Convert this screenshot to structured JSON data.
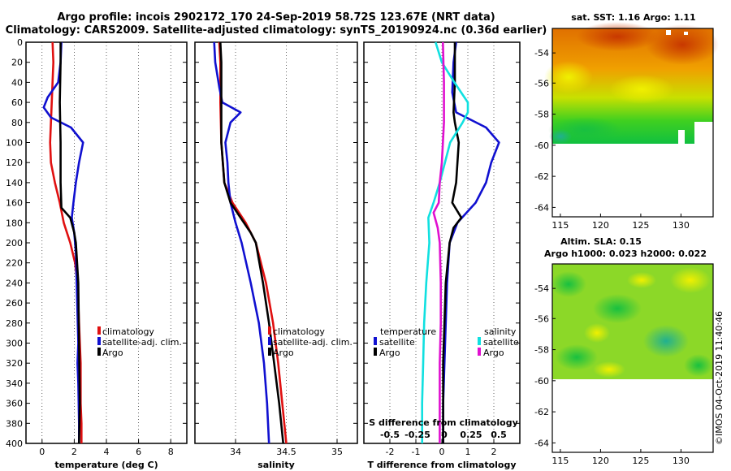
{
  "title": {
    "line1": "Argo profile: incois 2902172_170 24-Sep-2019 58.72S 123.67E (NRT data)",
    "line2": "Climatology: CARS2009. Satellite-adjusted climatology: synTS_20190924.nc (0.36d earlier)"
  },
  "colors": {
    "clim": "#e01010",
    "sat": "#1010d0",
    "argo": "#000000",
    "sat_s": "#10e0e0",
    "argo_s": "#e010d0"
  },
  "chart_data": [
    {
      "id": "temperature",
      "type": "line",
      "xlabel": "temperature (deg C)",
      "xlim": [
        -1,
        9
      ],
      "ylim": [
        0,
        400
      ],
      "xticks": [
        0,
        2,
        4,
        6,
        8
      ],
      "yticks": [
        0,
        20,
        40,
        60,
        80,
        100,
        120,
        140,
        160,
        180,
        200,
        220,
        240,
        260,
        280,
        300,
        320,
        340,
        360,
        380,
        400
      ],
      "legend": [
        "climatology",
        "satellite-adj. clim.",
        "Argo"
      ],
      "series": [
        {
          "name": "climatology",
          "color": "clim",
          "y": [
            0,
            20,
            60,
            80,
            100,
            120,
            140,
            160,
            180,
            200,
            220,
            240,
            260,
            280,
            300,
            320,
            340,
            360,
            380,
            400
          ],
          "x": [
            0.65,
            0.7,
            0.6,
            0.55,
            0.5,
            0.55,
            0.8,
            1.1,
            1.35,
            1.75,
            2.05,
            2.2,
            2.25,
            2.3,
            2.35,
            2.4,
            2.4,
            2.4,
            2.45,
            2.45
          ]
        },
        {
          "name": "satellite-adj. clim.",
          "color": "sat",
          "y": [
            0,
            20,
            40,
            55,
            65,
            75,
            85,
            100,
            120,
            140,
            160,
            175,
            190,
            210,
            240,
            270,
            300,
            320,
            340,
            380,
            400
          ],
          "x": [
            1.2,
            1.15,
            1.0,
            0.35,
            0.1,
            0.55,
            1.8,
            2.55,
            2.3,
            2.1,
            1.95,
            1.85,
            2.0,
            2.1,
            2.15,
            2.2,
            2.25,
            2.2,
            2.25,
            2.3,
            2.3
          ]
        },
        {
          "name": "Argo",
          "color": "argo",
          "y": [
            0,
            20,
            60,
            100,
            140,
            165,
            175,
            190,
            200,
            240,
            300,
            360,
            400
          ],
          "x": [
            1.15,
            1.15,
            1.1,
            1.15,
            1.15,
            1.2,
            1.75,
            2.0,
            2.1,
            2.25,
            2.3,
            2.35,
            2.3
          ]
        }
      ]
    },
    {
      "id": "salinity",
      "type": "line",
      "xlabel": "salinity",
      "xlim": [
        33.6,
        35.2
      ],
      "ylim": [
        0,
        400
      ],
      "xticks": [
        34,
        34.5,
        35
      ],
      "xticklabels": [
        "34",
        "34.5",
        "35"
      ],
      "legend": [
        "climatology",
        "satellite-adj. clim.",
        "Argo"
      ],
      "series": [
        {
          "name": "climatology",
          "color": "clim",
          "y": [
            0,
            20,
            60,
            100,
            140,
            160,
            180,
            200,
            240,
            280,
            320,
            360,
            400
          ],
          "x": [
            33.84,
            33.85,
            33.85,
            33.86,
            33.89,
            33.97,
            34.1,
            34.2,
            34.3,
            34.37,
            34.42,
            34.46,
            34.5
          ]
        },
        {
          "name": "satellite-adj. clim.",
          "color": "sat",
          "y": [
            0,
            20,
            45,
            60,
            70,
            80,
            100,
            120,
            140,
            160,
            180,
            200,
            240,
            280,
            320,
            360,
            400
          ],
          "x": [
            33.79,
            33.8,
            33.84,
            33.87,
            34.05,
            33.95,
            33.9,
            33.92,
            33.93,
            33.95,
            34.0,
            34.06,
            34.15,
            34.23,
            34.28,
            34.31,
            34.33
          ]
        },
        {
          "name": "Argo",
          "color": "argo",
          "y": [
            0,
            20,
            60,
            100,
            140,
            160,
            175,
            190,
            200,
            240,
            280,
            320,
            360,
            400
          ],
          "x": [
            33.85,
            33.86,
            33.86,
            33.86,
            33.89,
            33.95,
            34.05,
            34.15,
            34.2,
            34.27,
            34.33,
            34.38,
            34.43,
            34.47
          ]
        }
      ]
    },
    {
      "id": "difference",
      "type": "line",
      "xlabel": "T difference from climatology",
      "xlim": [
        -3,
        3
      ],
      "ylim": [
        0,
        400
      ],
      "xticks": [
        -2,
        -1,
        0,
        1,
        2
      ],
      "top_xlabel": "S difference from climatology",
      "top_ticks": [
        "-0.5",
        "-0.25",
        "0",
        "0.25",
        "0.5"
      ],
      "legend_left_title": "temperature",
      "legend_left": [
        "satellite",
        "Argo"
      ],
      "legend_right_title": "salinity",
      "legend_right": [
        "satellite",
        "Argo"
      ],
      "series": [
        {
          "name": "T satellite",
          "color": "sat",
          "y": [
            0,
            20,
            50,
            70,
            85,
            100,
            120,
            140,
            160,
            180,
            200,
            240,
            280,
            320,
            360,
            400
          ],
          "x": [
            0.55,
            0.45,
            0.4,
            0.55,
            1.7,
            2.2,
            1.9,
            1.7,
            1.3,
            0.6,
            0.3,
            0.2,
            0.15,
            0.1,
            0.05,
            0.05
          ]
        },
        {
          "name": "T Argo",
          "color": "argo",
          "y": [
            0,
            40,
            70,
            80,
            100,
            120,
            140,
            160,
            175,
            185,
            200,
            240,
            280,
            320,
            360,
            400
          ],
          "x": [
            0.5,
            0.5,
            0.45,
            0.5,
            0.65,
            0.6,
            0.55,
            0.4,
            0.75,
            0.45,
            0.3,
            0.15,
            0.1,
            0.05,
            0.05,
            0.05
          ]
        },
        {
          "name": "S satellite",
          "color": "sat_s",
          "y": [
            0,
            20,
            40,
            60,
            70,
            80,
            100,
            140,
            160,
            175,
            200,
            240,
            280,
            320,
            360,
            400
          ],
          "x": [
            -0.06,
            0.0,
            0.12,
            0.25,
            0.25,
            0.2,
            0.08,
            -0.02,
            -0.08,
            -0.13,
            -0.12,
            -0.15,
            -0.17,
            -0.18,
            -0.19,
            -0.19
          ]
        },
        {
          "name": "S Argo",
          "color": "argo_s",
          "y": [
            0,
            40,
            80,
            120,
            140,
            160,
            170,
            185,
            200,
            240,
            280,
            320,
            360,
            400
          ],
          "x": [
            0.01,
            0.02,
            0.02,
            0.0,
            -0.02,
            -0.03,
            -0.08,
            -0.04,
            -0.02,
            -0.01,
            -0.01,
            -0.02,
            -0.02,
            -0.02
          ]
        }
      ]
    }
  ],
  "maps": {
    "top": {
      "title": "sat. SST: 1.16 Argo: 1.11",
      "yticks": [
        "-54",
        "-56",
        "-58",
        "-60",
        "-62",
        "-64"
      ],
      "xticks": [
        "115",
        "120",
        "125",
        "130"
      ]
    },
    "bottom": {
      "title1": "Altim. SLA: 0.15",
      "title2": "Argo h1000: 0.023 h2000: 0.022",
      "yticks": [
        "-54",
        "-56",
        "-58",
        "-60",
        "-62",
        "-64"
      ],
      "xticks": [
        "115",
        "120",
        "125",
        "130"
      ]
    }
  },
  "credit": "©IMOS 04-Oct-2019 11:40:46"
}
